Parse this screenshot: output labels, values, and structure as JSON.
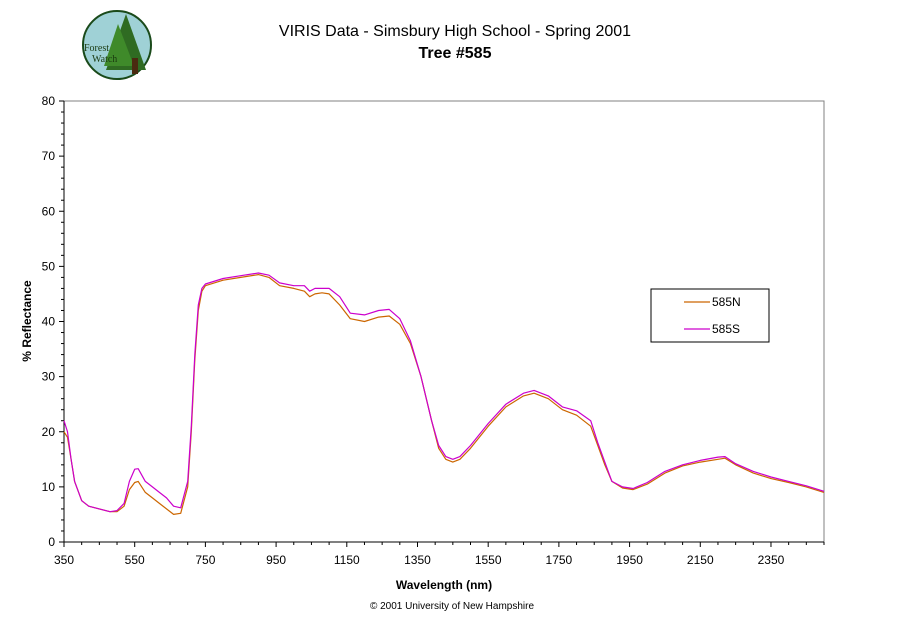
{
  "logo": {
    "line1": "Forest",
    "line2": "Watch"
  },
  "copyright": "© 2001 University of New Hampshire",
  "colors": {
    "series_585N": "#cc6600",
    "series_585S": "#cc00cc"
  },
  "chart_data": {
    "type": "line",
    "title": "VIRIS Data - Simsbury High School - Spring 2001",
    "subtitle": "Tree #585",
    "xlabel": "Wavelength (nm)",
    "ylabel": "% Reflectance",
    "xlim": [
      350,
      2500
    ],
    "ylim": [
      0,
      80
    ],
    "x_ticks": [
      350,
      550,
      750,
      950,
      1150,
      1350,
      1550,
      1750,
      1950,
      2150,
      2350
    ],
    "y_ticks": [
      0,
      10,
      20,
      30,
      40,
      50,
      60,
      70,
      80
    ],
    "grid": false,
    "legend_position": "right",
    "series": [
      {
        "name": "585N",
        "color": "#cc6600",
        "points": [
          [
            350,
            20
          ],
          [
            360,
            19
          ],
          [
            370,
            15
          ],
          [
            380,
            11
          ],
          [
            400,
            7.5
          ],
          [
            420,
            6.5
          ],
          [
            450,
            6
          ],
          [
            480,
            5.5
          ],
          [
            500,
            5.5
          ],
          [
            520,
            6.5
          ],
          [
            535,
            9.5
          ],
          [
            550,
            10.8
          ],
          [
            560,
            11
          ],
          [
            580,
            9
          ],
          [
            600,
            8
          ],
          [
            620,
            7
          ],
          [
            640,
            6
          ],
          [
            660,
            5
          ],
          [
            680,
            5.2
          ],
          [
            700,
            10
          ],
          [
            710,
            20
          ],
          [
            720,
            33
          ],
          [
            730,
            42
          ],
          [
            740,
            45.5
          ],
          [
            750,
            46.5
          ],
          [
            800,
            47.5
          ],
          [
            850,
            48
          ],
          [
            900,
            48.5
          ],
          [
            930,
            48
          ],
          [
            960,
            46.5
          ],
          [
            1000,
            46
          ],
          [
            1030,
            45.5
          ],
          [
            1045,
            44.5
          ],
          [
            1060,
            45
          ],
          [
            1080,
            45.2
          ],
          [
            1100,
            45
          ],
          [
            1130,
            43
          ],
          [
            1160,
            40.5
          ],
          [
            1200,
            40
          ],
          [
            1240,
            40.8
          ],
          [
            1270,
            41
          ],
          [
            1300,
            39.5
          ],
          [
            1330,
            36
          ],
          [
            1360,
            30
          ],
          [
            1390,
            22
          ],
          [
            1410,
            17
          ],
          [
            1430,
            15
          ],
          [
            1450,
            14.5
          ],
          [
            1470,
            15
          ],
          [
            1500,
            17
          ],
          [
            1550,
            21
          ],
          [
            1600,
            24.5
          ],
          [
            1650,
            26.5
          ],
          [
            1680,
            27
          ],
          [
            1720,
            26
          ],
          [
            1760,
            24
          ],
          [
            1800,
            23
          ],
          [
            1840,
            21
          ],
          [
            1860,
            17.5
          ],
          [
            1880,
            14
          ],
          [
            1900,
            11
          ],
          [
            1930,
            9.8
          ],
          [
            1960,
            9.5
          ],
          [
            2000,
            10.5
          ],
          [
            2050,
            12.5
          ],
          [
            2100,
            13.8
          ],
          [
            2150,
            14.5
          ],
          [
            2200,
            15
          ],
          [
            2220,
            15.2
          ],
          [
            2250,
            14
          ],
          [
            2300,
            12.5
          ],
          [
            2350,
            11.5
          ],
          [
            2400,
            10.8
          ],
          [
            2450,
            10
          ],
          [
            2500,
            9
          ]
        ]
      },
      {
        "name": "585S",
        "color": "#cc00cc",
        "points": [
          [
            350,
            22
          ],
          [
            360,
            20
          ],
          [
            370,
            15
          ],
          [
            380,
            11
          ],
          [
            400,
            7.5
          ],
          [
            420,
            6.5
          ],
          [
            450,
            6
          ],
          [
            480,
            5.5
          ],
          [
            500,
            5.7
          ],
          [
            520,
            7
          ],
          [
            535,
            11
          ],
          [
            550,
            13.2
          ],
          [
            560,
            13.3
          ],
          [
            580,
            11
          ],
          [
            600,
            10
          ],
          [
            620,
            9
          ],
          [
            640,
            8
          ],
          [
            660,
            6.5
          ],
          [
            680,
            6.2
          ],
          [
            700,
            11
          ],
          [
            710,
            21
          ],
          [
            720,
            34
          ],
          [
            730,
            43
          ],
          [
            740,
            46
          ],
          [
            750,
            46.8
          ],
          [
            800,
            47.8
          ],
          [
            850,
            48.3
          ],
          [
            900,
            48.8
          ],
          [
            930,
            48.4
          ],
          [
            960,
            47
          ],
          [
            1000,
            46.5
          ],
          [
            1030,
            46.5
          ],
          [
            1045,
            45.5
          ],
          [
            1060,
            46
          ],
          [
            1080,
            46
          ],
          [
            1100,
            46
          ],
          [
            1130,
            44.5
          ],
          [
            1160,
            41.5
          ],
          [
            1200,
            41.2
          ],
          [
            1240,
            42
          ],
          [
            1270,
            42.2
          ],
          [
            1300,
            40.5
          ],
          [
            1330,
            36.5
          ],
          [
            1360,
            30
          ],
          [
            1390,
            22
          ],
          [
            1410,
            17.5
          ],
          [
            1430,
            15.5
          ],
          [
            1450,
            15
          ],
          [
            1470,
            15.5
          ],
          [
            1500,
            17.5
          ],
          [
            1550,
            21.5
          ],
          [
            1600,
            25
          ],
          [
            1650,
            27
          ],
          [
            1680,
            27.5
          ],
          [
            1720,
            26.5
          ],
          [
            1760,
            24.5
          ],
          [
            1800,
            23.8
          ],
          [
            1840,
            22
          ],
          [
            1860,
            18
          ],
          [
            1880,
            14.5
          ],
          [
            1900,
            11
          ],
          [
            1930,
            10
          ],
          [
            1960,
            9.7
          ],
          [
            2000,
            10.8
          ],
          [
            2050,
            12.8
          ],
          [
            2100,
            14
          ],
          [
            2150,
            14.8
          ],
          [
            2200,
            15.4
          ],
          [
            2220,
            15.5
          ],
          [
            2250,
            14.2
          ],
          [
            2300,
            12.8
          ],
          [
            2350,
            11.8
          ],
          [
            2400,
            11
          ],
          [
            2450,
            10.2
          ],
          [
            2500,
            9.2
          ]
        ]
      }
    ]
  }
}
